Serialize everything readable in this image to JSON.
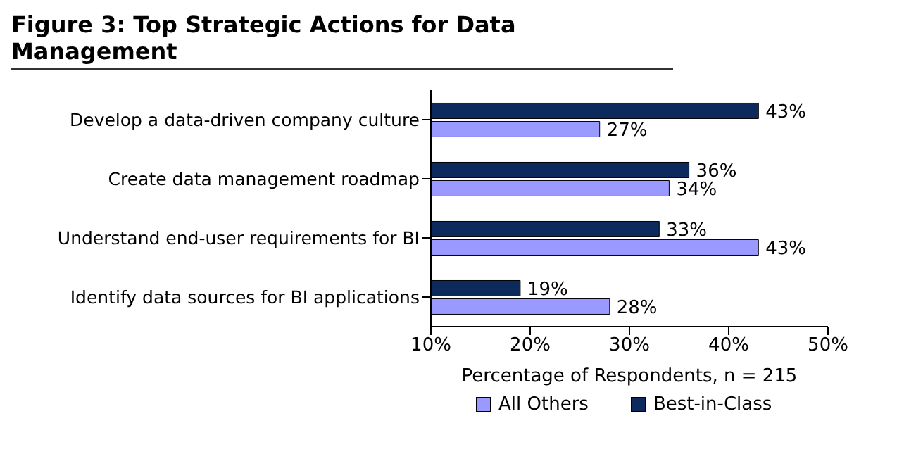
{
  "chart_data": {
    "type": "bar",
    "orientation": "horizontal",
    "title": "Figure 3: Top Strategic Actions for Data Management",
    "xlabel": "Percentage of Respondents, n = 215",
    "categories": [
      "Develop a data-driven company culture",
      "Create data management roadmap",
      "Understand end-user requirements for BI",
      "Identify data sources for BI applications"
    ],
    "series": [
      {
        "name": "All Others",
        "color": "#9999ff",
        "values": [
          27,
          34,
          43,
          28
        ],
        "value_labels": [
          "27%",
          "34%",
          "43%",
          "28%"
        ]
      },
      {
        "name": "Best-in-Class",
        "color": "#0d2a5c",
        "values": [
          43,
          36,
          33,
          19
        ],
        "value_labels": [
          "43%",
          "36%",
          "33%",
          "19%"
        ]
      }
    ],
    "xlim": [
      10,
      50
    ],
    "xticks": [
      {
        "value": 10,
        "label": "10%"
      },
      {
        "value": 20,
        "label": "20%"
      },
      {
        "value": 30,
        "label": "30%"
      },
      {
        "value": 40,
        "label": "40%"
      },
      {
        "value": 50,
        "label": "50%"
      }
    ],
    "grid": false,
    "legend": "bottom"
  }
}
